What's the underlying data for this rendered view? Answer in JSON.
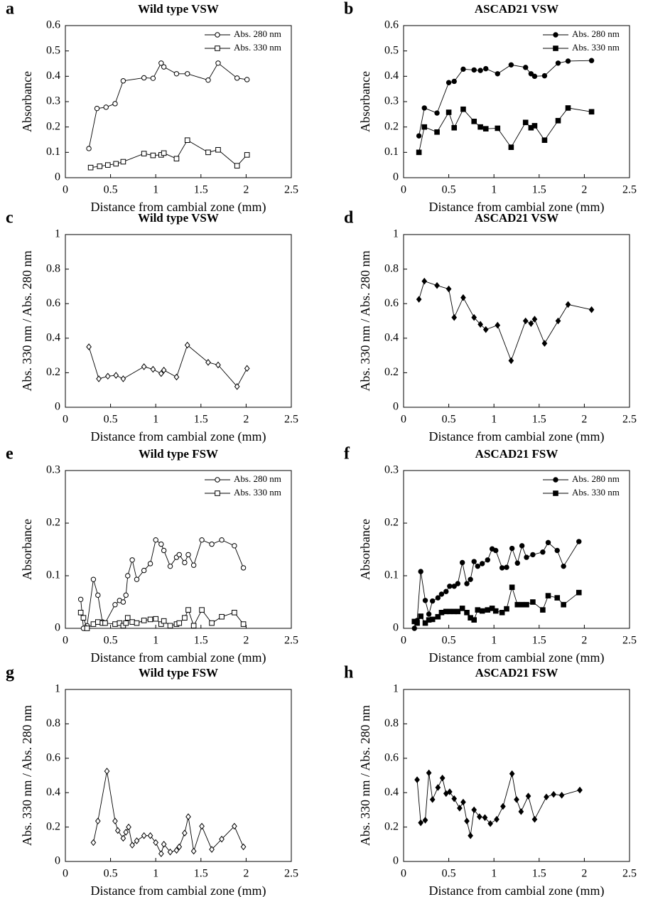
{
  "chart_data": [
    {
      "type": "line",
      "panel_label": "a",
      "title": "Wild type VSW",
      "xlabel": "Distance from cambial zone (mm)",
      "ylabel": "Absorbance",
      "xlim": [
        0,
        2.5
      ],
      "xticks": [
        0,
        0.5,
        1,
        1.5,
        2,
        2.5
      ],
      "ylim": [
        0,
        0.6
      ],
      "yticks": [
        0,
        0.1,
        0.2,
        0.3,
        0.4,
        0.5,
        0.6
      ],
      "legend": "upper right",
      "series": [
        {
          "name": "Abs. 280 nm",
          "color": "#000000",
          "marker": "circle",
          "filled": false,
          "x": [
            0.26,
            0.35,
            0.45,
            0.55,
            0.64,
            0.87,
            0.97,
            1.06,
            1.09,
            1.23,
            1.35,
            1.58,
            1.69,
            1.9,
            2.01
          ],
          "values": [
            0.115,
            0.273,
            0.278,
            0.292,
            0.382,
            0.394,
            0.392,
            0.452,
            0.437,
            0.41,
            0.41,
            0.385,
            0.452,
            0.393,
            0.387
          ]
        },
        {
          "name": "Abs. 330 nm",
          "color": "#000000",
          "marker": "square",
          "filled": false,
          "x": [
            0.28,
            0.38,
            0.47,
            0.56,
            0.64,
            0.87,
            0.97,
            1.06,
            1.09,
            1.23,
            1.35,
            1.58,
            1.69,
            1.9,
            2.01
          ],
          "values": [
            0.04,
            0.045,
            0.05,
            0.055,
            0.063,
            0.095,
            0.088,
            0.09,
            0.097,
            0.075,
            0.148,
            0.1,
            0.11,
            0.047,
            0.09
          ]
        }
      ]
    },
    {
      "type": "line",
      "panel_label": "b",
      "title": "ASCAD21 VSW",
      "xlabel": "Distance from cambial zone (mm)",
      "ylabel": "Absorbance",
      "xlim": [
        0,
        2.5
      ],
      "xticks": [
        0,
        0.5,
        1,
        1.5,
        2,
        2.5
      ],
      "ylim": [
        0,
        0.6
      ],
      "yticks": [
        0,
        0.1,
        0.2,
        0.3,
        0.4,
        0.5,
        0.6
      ],
      "legend": "upper right",
      "series": [
        {
          "name": "Abs. 280 nm",
          "color": "#000000",
          "marker": "circle",
          "filled": true,
          "x": [
            0.17,
            0.23,
            0.37,
            0.5,
            0.56,
            0.66,
            0.78,
            0.85,
            0.91,
            1.04,
            1.19,
            1.35,
            1.41,
            1.45,
            1.56,
            1.71,
            1.82,
            2.08
          ],
          "values": [
            0.165,
            0.275,
            0.255,
            0.375,
            0.38,
            0.428,
            0.425,
            0.423,
            0.43,
            0.41,
            0.445,
            0.435,
            0.41,
            0.4,
            0.402,
            0.452,
            0.46,
            0.462
          ]
        },
        {
          "name": "Abs. 330 nm",
          "color": "#000000",
          "marker": "square",
          "filled": true,
          "x": [
            0.17,
            0.23,
            0.37,
            0.5,
            0.56,
            0.66,
            0.78,
            0.85,
            0.91,
            1.04,
            1.19,
            1.35,
            1.41,
            1.45,
            1.56,
            1.71,
            1.82,
            2.08
          ],
          "values": [
            0.1,
            0.2,
            0.18,
            0.258,
            0.197,
            0.27,
            0.222,
            0.2,
            0.193,
            0.195,
            0.12,
            0.218,
            0.197,
            0.205,
            0.148,
            0.225,
            0.275,
            0.26
          ]
        }
      ]
    },
    {
      "type": "line",
      "panel_label": "c",
      "title": "Wild type VSW",
      "xlabel": "Distance from cambial zone (mm)",
      "ylabel": "Abs. 330 nm / Abs. 280 nm",
      "xlim": [
        0,
        2.5
      ],
      "xticks": [
        0,
        0.5,
        1,
        1.5,
        2,
        2.5
      ],
      "ylim": [
        0,
        1
      ],
      "yticks": [
        0,
        0.2,
        0.4,
        0.6,
        0.8,
        1
      ],
      "series": [
        {
          "color": "#000000",
          "marker": "diamond",
          "filled": false,
          "x": [
            0.26,
            0.37,
            0.47,
            0.56,
            0.64,
            0.87,
            0.97,
            1.06,
            1.09,
            1.23,
            1.35,
            1.58,
            1.69,
            1.9,
            2.01
          ],
          "values": [
            0.35,
            0.165,
            0.18,
            0.185,
            0.165,
            0.235,
            0.22,
            0.195,
            0.215,
            0.175,
            0.36,
            0.26,
            0.245,
            0.12,
            0.225
          ]
        }
      ]
    },
    {
      "type": "line",
      "panel_label": "d",
      "title": "ASCAD21 VSW",
      "xlabel": "Distance from cambial zone (mm)",
      "ylabel": "Abs. 330 nm / Abs. 280 nm",
      "xlim": [
        0,
        2.5
      ],
      "xticks": [
        0,
        0.5,
        1,
        1.5,
        2,
        2.5
      ],
      "ylim": [
        0,
        1
      ],
      "yticks": [
        0,
        0.2,
        0.4,
        0.6,
        0.8,
        1
      ],
      "series": [
        {
          "color": "#000000",
          "marker": "diamond",
          "filled": true,
          "x": [
            0.17,
            0.23,
            0.37,
            0.5,
            0.56,
            0.66,
            0.78,
            0.85,
            0.91,
            1.04,
            1.19,
            1.35,
            1.41,
            1.45,
            1.56,
            1.71,
            1.82,
            2.08
          ],
          "values": [
            0.625,
            0.73,
            0.705,
            0.685,
            0.52,
            0.635,
            0.52,
            0.48,
            0.45,
            0.475,
            0.27,
            0.5,
            0.485,
            0.51,
            0.37,
            0.5,
            0.595,
            0.565
          ]
        }
      ]
    },
    {
      "type": "line",
      "panel_label": "e",
      "title": "Wild type FSW",
      "xlabel": "Distance from cambial zone (mm)",
      "ylabel": "Absorbance",
      "xlim": [
        0,
        2.5
      ],
      "xticks": [
        0,
        0.5,
        1,
        1.5,
        2,
        2.5
      ],
      "ylim": [
        0,
        0.3
      ],
      "yticks": [
        0,
        0.1,
        0.2,
        0.3
      ],
      "legend": "upper right",
      "series": [
        {
          "name": "Abs. 280 nm",
          "color": "#000000",
          "marker": "circle",
          "filled": false,
          "x": [
            0.17,
            0.2,
            0.24,
            0.31,
            0.36,
            0.41,
            0.44,
            0.55,
            0.6,
            0.64,
            0.67,
            0.69,
            0.74,
            0.79,
            0.87,
            0.94,
            1.0,
            1.06,
            1.09,
            1.16,
            1.23,
            1.26,
            1.32,
            1.36,
            1.42,
            1.51,
            1.62,
            1.73,
            1.87,
            1.97
          ],
          "values": [
            0.055,
            0,
            0.005,
            0.093,
            0.063,
            0.012,
            0.01,
            0.045,
            0.053,
            0.05,
            0.063,
            0.1,
            0.13,
            0.093,
            0.11,
            0.123,
            0.168,
            0.16,
            0.148,
            0.118,
            0.135,
            0.14,
            0.125,
            0.14,
            0.12,
            0.168,
            0.16,
            0.168,
            0.157,
            0.115
          ]
        },
        {
          "name": "Abs. 330 nm",
          "color": "#000000",
          "marker": "square",
          "filled": false,
          "x": [
            0.17,
            0.2,
            0.24,
            0.31,
            0.36,
            0.41,
            0.44,
            0.55,
            0.6,
            0.64,
            0.67,
            0.69,
            0.74,
            0.79,
            0.87,
            0.94,
            1.0,
            1.06,
            1.09,
            1.16,
            1.23,
            1.26,
            1.32,
            1.36,
            1.42,
            1.51,
            1.62,
            1.73,
            1.87,
            1.97
          ],
          "values": [
            0.03,
            0.02,
            0,
            0.008,
            0.012,
            0.01,
            0.01,
            0.008,
            0.01,
            0.005,
            0.01,
            0.02,
            0.012,
            0.01,
            0.015,
            0.017,
            0.018,
            0.008,
            0.014,
            0.005,
            0.008,
            0.01,
            0.02,
            0.035,
            0.005,
            0.035,
            0.01,
            0.022,
            0.03,
            0.008
          ]
        }
      ]
    },
    {
      "type": "line",
      "panel_label": "f",
      "title": "ASCAD21 FSW",
      "xlabel": "Distance from cambial zone (mm)",
      "ylabel": "Absorbance",
      "xlim": [
        0,
        2.5
      ],
      "xticks": [
        0,
        0.5,
        1,
        1.5,
        2,
        2.5
      ],
      "ylim": [
        0,
        0.3
      ],
      "yticks": [
        0,
        0.1,
        0.2,
        0.3
      ],
      "legend": "upper right",
      "series": [
        {
          "name": "Abs. 280 nm",
          "color": "#000000",
          "marker": "circle",
          "filled": true,
          "x": [
            0.12,
            0.15,
            0.19,
            0.24,
            0.28,
            0.32,
            0.38,
            0.42,
            0.47,
            0.51,
            0.56,
            0.6,
            0.65,
            0.7,
            0.74,
            0.78,
            0.82,
            0.87,
            0.93,
            0.98,
            1.02,
            1.09,
            1.14,
            1.2,
            1.26,
            1.31,
            1.36,
            1.43,
            1.54,
            1.6,
            1.7,
            1.77,
            1.94
          ],
          "values": [
            0,
            0.015,
            0.108,
            0.053,
            0.027,
            0.052,
            0.058,
            0.065,
            0.07,
            0.08,
            0.08,
            0.085,
            0.125,
            0.085,
            0.093,
            0.127,
            0.118,
            0.123,
            0.13,
            0.151,
            0.148,
            0.115,
            0.116,
            0.152,
            0.124,
            0.157,
            0.135,
            0.14,
            0.145,
            0.163,
            0.148,
            0.118,
            0.165
          ]
        },
        {
          "name": "Abs. 330 nm",
          "color": "#000000",
          "marker": "square",
          "filled": true,
          "x": [
            0.12,
            0.15,
            0.19,
            0.24,
            0.28,
            0.32,
            0.38,
            0.42,
            0.47,
            0.51,
            0.56,
            0.6,
            0.65,
            0.7,
            0.74,
            0.78,
            0.82,
            0.87,
            0.93,
            0.98,
            1.02,
            1.09,
            1.14,
            1.2,
            1.26,
            1.31,
            1.36,
            1.43,
            1.54,
            1.6,
            1.7,
            1.77,
            1.94
          ],
          "values": [
            0.013,
            0.01,
            0.023,
            0.01,
            0.016,
            0.017,
            0.022,
            0.03,
            0.032,
            0.032,
            0.032,
            0.032,
            0.038,
            0.03,
            0.02,
            0.016,
            0.035,
            0.033,
            0.035,
            0.038,
            0.033,
            0.03,
            0.037,
            0.078,
            0.045,
            0.045,
            0.045,
            0.05,
            0.035,
            0.062,
            0.058,
            0.045,
            0.068
          ]
        }
      ]
    },
    {
      "type": "line",
      "panel_label": "g",
      "title": "Wild type FSW",
      "xlabel": "Distance from cambial zone (mm)",
      "ylabel": "Abs. 330 nm / Abs. 280 nm",
      "xlim": [
        0,
        2.5
      ],
      "xticks": [
        0,
        0.5,
        1,
        1.5,
        2,
        2.5
      ],
      "ylim": [
        0,
        1
      ],
      "yticks": [
        0,
        0.2,
        0.4,
        0.6,
        0.8,
        1
      ],
      "series": [
        {
          "color": "#000000",
          "marker": "diamond",
          "filled": false,
          "x": [
            0.31,
            0.36,
            0.46,
            0.55,
            0.58,
            0.64,
            0.67,
            0.7,
            0.74,
            0.79,
            0.87,
            0.94,
            1.0,
            1.06,
            1.09,
            1.16,
            1.23,
            1.26,
            1.32,
            1.36,
            1.42,
            1.51,
            1.62,
            1.73,
            1.87,
            1.97
          ],
          "values": [
            0.11,
            0.235,
            0.525,
            0.235,
            0.18,
            0.135,
            0.17,
            0.2,
            0.095,
            0.12,
            0.15,
            0.15,
            0.11,
            0.045,
            0.1,
            0.055,
            0.065,
            0.085,
            0.165,
            0.26,
            0.06,
            0.205,
            0.07,
            0.13,
            0.205,
            0.085
          ]
        }
      ]
    },
    {
      "type": "line",
      "panel_label": "h",
      "title": "ASCAD21 FSW",
      "xlabel": "Distance from cambial zone (mm)",
      "ylabel": "Abs. 330 nm / Abs. 280 nm",
      "xlim": [
        0,
        2.5
      ],
      "xticks": [
        0,
        0.5,
        1,
        1.5,
        2,
        2.5
      ],
      "ylim": [
        0,
        1
      ],
      "yticks": [
        0,
        0.2,
        0.4,
        0.6,
        0.8,
        1
      ],
      "series": [
        {
          "color": "#000000",
          "marker": "diamond",
          "filled": true,
          "x": [
            0.15,
            0.19,
            0.24,
            0.28,
            0.32,
            0.38,
            0.43,
            0.47,
            0.51,
            0.56,
            0.62,
            0.66,
            0.7,
            0.74,
            0.78,
            0.84,
            0.9,
            0.96,
            1.03,
            1.1,
            1.2,
            1.25,
            1.3,
            1.38,
            1.45,
            1.58,
            1.66,
            1.75,
            1.95
          ],
          "values": [
            0.475,
            0.225,
            0.24,
            0.515,
            0.36,
            0.43,
            0.485,
            0.395,
            0.405,
            0.365,
            0.31,
            0.345,
            0.235,
            0.15,
            0.3,
            0.26,
            0.255,
            0.22,
            0.245,
            0.32,
            0.51,
            0.36,
            0.29,
            0.38,
            0.245,
            0.375,
            0.39,
            0.385,
            0.415
          ]
        }
      ]
    }
  ]
}
